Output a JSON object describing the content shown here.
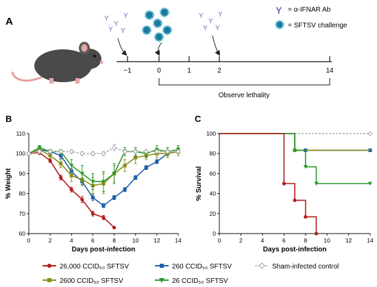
{
  "panel_a": {
    "label": "A",
    "legend": [
      {
        "icon": "antibody-icon",
        "text": "= α-IFNAR Ab"
      },
      {
        "icon": "virus-icon",
        "text": "= SFTSV challenge"
      }
    ],
    "timeline_ticks": [
      "−1",
      "0",
      "1",
      "2",
      "14"
    ],
    "bracket_label": "Observe lethality"
  },
  "panel_b_label": "B",
  "panel_c_label": "C",
  "legend": [
    {
      "text": "26,000 CCID₅₀ SFTSV",
      "color": "#b31b1b",
      "marker": "circle"
    },
    {
      "text": "260 CCID₅₀ SFTSV",
      "color": "#1f5fa8",
      "marker": "square"
    },
    {
      "text": "Sham-infected control",
      "color": "#aaaaaa",
      "marker": "open-diamond"
    },
    {
      "text": "2600 CCID₅₀ SFTSV",
      "color": "#8c8c1a",
      "marker": "square"
    },
    {
      "text": "26 CCID₅₀ SFTSV",
      "color": "#2a9a2a",
      "marker": "triangle-down"
    }
  ],
  "chart_data": [
    {
      "type": "line",
      "xlabel": "Days post-infection",
      "ylabel": "% Weight",
      "xlim": [
        0,
        14
      ],
      "ylim": [
        60,
        110
      ],
      "xticks": [
        0,
        2,
        4,
        6,
        8,
        10,
        12,
        14
      ],
      "yticks": [
        60,
        70,
        80,
        90,
        100,
        110
      ],
      "series": [
        {
          "name": "26,000 CCID₅₀ SFTSV",
          "color": "#b31b1b",
          "x": [
            0,
            1,
            2,
            3,
            4,
            5,
            6,
            7,
            8
          ],
          "y": [
            100,
            100.5,
            96.5,
            88,
            82,
            77,
            70,
            68,
            63
          ],
          "err": [
            0.5,
            1,
            1,
            1.2,
            1.2,
            1.5,
            1.2,
            1,
            0
          ]
        },
        {
          "name": "260 CCID₅₀ SFTSV",
          "color": "#1f5fa8",
          "x": [
            0,
            1,
            2,
            3,
            4,
            5,
            6,
            7,
            8,
            9,
            10,
            11,
            12,
            13,
            14
          ],
          "y": [
            100,
            102,
            101,
            99,
            91,
            86,
            78,
            74,
            78,
            82,
            88,
            93,
            96,
            100,
            101
          ],
          "err": [
            0.5,
            1,
            1,
            1.5,
            1.5,
            1.5,
            1.5,
            1,
            1,
            1,
            1,
            1,
            1,
            1,
            1
          ]
        },
        {
          "name": "2600 CCID₅₀ SFTSV",
          "color": "#8c8c1a",
          "x": [
            0,
            1,
            2,
            3,
            4,
            5,
            6,
            7,
            8,
            9,
            10,
            11,
            12,
            13,
            14
          ],
          "y": [
            100,
            102,
            99,
            95,
            89,
            87,
            84,
            85,
            90,
            94,
            98,
            99,
            100,
            100,
            101
          ],
          "err": [
            0.5,
            1,
            1.5,
            2,
            3,
            3,
            4,
            5,
            4,
            3,
            3,
            2,
            2,
            2,
            2
          ]
        },
        {
          "name": "26 CCID₅₀ SFTSV",
          "color": "#2a9a2a",
          "x": [
            0,
            1,
            2,
            3,
            4,
            5,
            6,
            7,
            8,
            9,
            10,
            11,
            12,
            13,
            14
          ],
          "y": [
            100,
            103,
            101,
            101,
            94,
            90,
            86,
            86,
            90,
            101,
            101,
            100,
            102,
            101,
            102
          ],
          "err": [
            0.5,
            1,
            1,
            1,
            3,
            4,
            4,
            5,
            5,
            2,
            2,
            2,
            2,
            2,
            2
          ]
        },
        {
          "name": "Sham-infected control",
          "color": "#aaaaaa",
          "dashed": true,
          "x": [
            0,
            1,
            2,
            3,
            4,
            5,
            6,
            7,
            8,
            9,
            10,
            11,
            12,
            13,
            14
          ],
          "y": [
            100,
            101,
            101,
            101,
            101,
            100,
            100,
            100,
            103,
            101,
            101,
            101,
            101,
            101,
            101
          ],
          "err": [
            0.5,
            1,
            1,
            1,
            1,
            1,
            1,
            1,
            1.5,
            1,
            1,
            1,
            1,
            1,
            1
          ]
        }
      ]
    },
    {
      "type": "line",
      "step": true,
      "xlabel": "Days post-infection",
      "ylabel": "% Survival",
      "xlim": [
        0,
        14
      ],
      "ylim": [
        0,
        100
      ],
      "xticks": [
        0,
        2,
        4,
        6,
        8,
        10,
        12,
        14
      ],
      "yticks": [
        0,
        20,
        40,
        60,
        80,
        100
      ],
      "series": [
        {
          "name": "Sham-infected control",
          "color": "#aaaaaa",
          "dashed": true,
          "points": [
            [
              0,
              100
            ],
            [
              14,
              100
            ]
          ],
          "marks": [
            [
              14,
              100
            ]
          ]
        },
        {
          "name": "260 CCID₅₀ SFTSV",
          "color": "#1f5fa8",
          "points": [
            [
              0,
              100
            ],
            [
              7,
              100
            ],
            [
              7,
              83.3
            ],
            [
              14,
              83.3
            ]
          ],
          "marks": [
            [
              8,
              83.3
            ],
            [
              14,
              83.3
            ]
          ]
        },
        {
          "name": "2600 CCID₅₀ SFTSV",
          "color": "#8c8c1a",
          "points": [
            [
              0,
              100
            ],
            [
              7,
              100
            ],
            [
              7,
              83.3
            ],
            [
              14,
              83.3
            ]
          ],
          "marks": [
            [
              7,
              83.3
            ]
          ]
        },
        {
          "name": "26 CCID₅₀ SFTSV",
          "color": "#2a9a2a",
          "points": [
            [
              0,
              100
            ],
            [
              7,
              100
            ],
            [
              7,
              83.3
            ],
            [
              8,
              83.3
            ],
            [
              8,
              66.7
            ],
            [
              9,
              66.7
            ],
            [
              9,
              50
            ],
            [
              14,
              50
            ]
          ],
          "marks": [
            [
              7,
              83.3
            ],
            [
              8,
              66.7
            ],
            [
              9,
              50
            ],
            [
              14,
              50
            ]
          ]
        },
        {
          "name": "26,000 CCID₅₀ SFTSV",
          "color": "#b31b1b",
          "points": [
            [
              0,
              100
            ],
            [
              6,
              100
            ],
            [
              6,
              50
            ],
            [
              7,
              50
            ],
            [
              7,
              33.3
            ],
            [
              8,
              33.3
            ],
            [
              8,
              16.7
            ],
            [
              9,
              16.7
            ],
            [
              9,
              0
            ]
          ],
          "marks": [
            [
              6,
              50
            ],
            [
              7,
              33.3
            ],
            [
              8,
              16.7
            ],
            [
              9,
              0
            ]
          ]
        }
      ]
    }
  ]
}
